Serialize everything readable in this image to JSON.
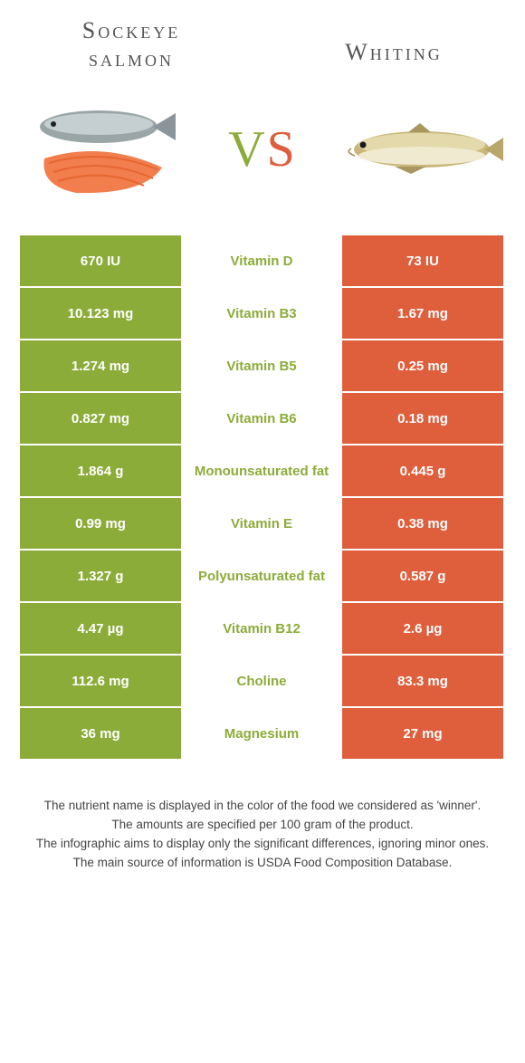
{
  "colors": {
    "left_bg": "#8cac3a",
    "right_bg": "#df5e3c",
    "left_text": "#ffffff",
    "right_text": "#ffffff",
    "nutrient_text_winner_left": "#8cac3a",
    "mid_bg": "#ffffff",
    "title_text": "#555555"
  },
  "foods": {
    "left": {
      "title_line1": "Sockeye",
      "title_line2": "salmon"
    },
    "right": {
      "title_line1": "Whiting",
      "title_line2": ""
    }
  },
  "vs": {
    "v": "V",
    "s": "S"
  },
  "rows": [
    {
      "nutrient": "Vitamin D",
      "left": "670 IU",
      "right": "73 IU",
      "winner": "left"
    },
    {
      "nutrient": "Vitamin B3",
      "left": "10.123 mg",
      "right": "1.67 mg",
      "winner": "left"
    },
    {
      "nutrient": "Vitamin B5",
      "left": "1.274 mg",
      "right": "0.25 mg",
      "winner": "left"
    },
    {
      "nutrient": "Vitamin B6",
      "left": "0.827 mg",
      "right": "0.18 mg",
      "winner": "left"
    },
    {
      "nutrient": "Monounsaturated fat",
      "left": "1.864 g",
      "right": "0.445 g",
      "winner": "left"
    },
    {
      "nutrient": "Vitamin E",
      "left": "0.99 mg",
      "right": "0.38 mg",
      "winner": "left"
    },
    {
      "nutrient": "Polyunsaturated fat",
      "left": "1.327 g",
      "right": "0.587 g",
      "winner": "left"
    },
    {
      "nutrient": "Vitamin B12",
      "left": "4.47 µg",
      "right": "2.6 µg",
      "winner": "left"
    },
    {
      "nutrient": "Choline",
      "left": "112.6 mg",
      "right": "83.3 mg",
      "winner": "left"
    },
    {
      "nutrient": "Magnesium",
      "left": "36 mg",
      "right": "27 mg",
      "winner": "left"
    }
  ],
  "notes": {
    "line1": "The nutrient name is displayed in the color of the food we considered as 'winner'.",
    "line2": "The amounts are specified per 100 gram of the product.",
    "line3": "The infographic aims to display only the significant differences, ignoring minor ones.",
    "line4": "The main source of information is USDA Food Composition Database."
  }
}
